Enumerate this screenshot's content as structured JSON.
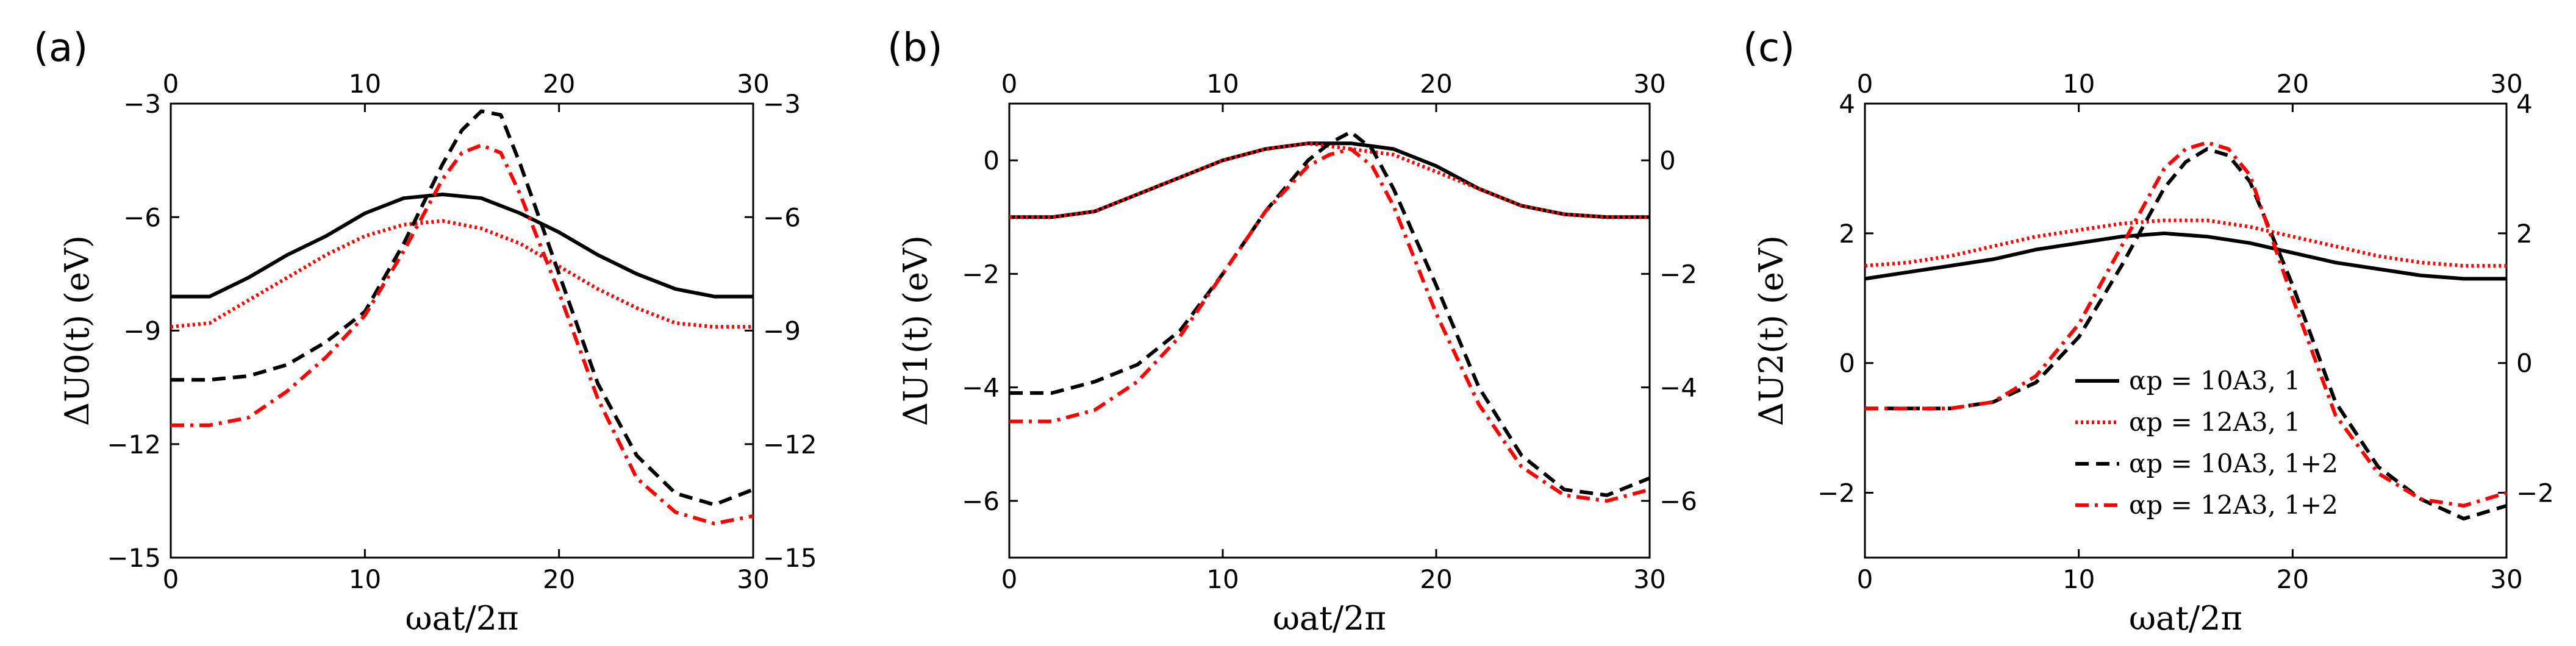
{
  "chart_data": [
    {
      "type": "line",
      "panel_label": "(a)",
      "xlabel": "ωat/2π",
      "ylabel": "ΔU0(t) (eV)",
      "xlim": [
        0,
        30
      ],
      "ylim": [
        -15,
        -3
      ],
      "xticks": [
        0,
        10,
        20,
        30
      ],
      "yticks": [
        -15,
        -12,
        -9,
        -6,
        -3
      ],
      "xtick_labels": [
        "0",
        "10",
        "20",
        "30"
      ],
      "ytick_labels": [
        "−15",
        "−12",
        "−9",
        "−6",
        "−3"
      ],
      "grid": false,
      "series": [
        {
          "color": "#000000",
          "dash": "solid",
          "x": [
            0,
            2,
            4,
            6,
            8,
            10,
            12,
            14,
            16,
            18,
            20,
            22,
            24,
            26,
            28,
            30
          ],
          "y": [
            -8.1,
            -8.1,
            -7.6,
            -7.0,
            -6.5,
            -5.9,
            -5.5,
            -5.4,
            -5.5,
            -5.9,
            -6.4,
            -7.0,
            -7.5,
            -7.9,
            -8.1,
            -8.1
          ]
        },
        {
          "color": "#ff0000",
          "dash": "dotted",
          "x": [
            0,
            2,
            4,
            6,
            8,
            10,
            12,
            14,
            16,
            18,
            20,
            22,
            24,
            26,
            28,
            30
          ],
          "y": [
            -8.9,
            -8.8,
            -8.2,
            -7.6,
            -7.0,
            -6.5,
            -6.2,
            -6.1,
            -6.3,
            -6.7,
            -7.3,
            -7.9,
            -8.4,
            -8.8,
            -8.9,
            -8.9
          ]
        },
        {
          "color": "#000000",
          "dash": "dashed",
          "x": [
            0,
            2,
            4,
            6,
            8,
            10,
            12,
            14,
            15,
            16,
            17,
            18,
            20,
            22,
            24,
            26,
            28,
            30
          ],
          "y": [
            -10.3,
            -10.3,
            -10.2,
            -9.9,
            -9.3,
            -8.5,
            -6.7,
            -4.6,
            -3.7,
            -3.2,
            -3.3,
            -4.6,
            -7.5,
            -10.4,
            -12.3,
            -13.3,
            -13.6,
            -13.2
          ]
        },
        {
          "color": "#ff0000",
          "dash": "dashdot",
          "x": [
            0,
            2,
            4,
            6,
            8,
            10,
            12,
            14,
            15,
            16,
            17,
            18,
            20,
            22,
            24,
            26,
            28,
            30
          ],
          "y": [
            -11.5,
            -11.5,
            -11.3,
            -10.6,
            -9.7,
            -8.6,
            -6.9,
            -5.0,
            -4.3,
            -4.1,
            -4.3,
            -5.4,
            -8.0,
            -10.8,
            -12.9,
            -13.8,
            -14.1,
            -13.9
          ]
        }
      ]
    },
    {
      "type": "line",
      "panel_label": "(b)",
      "xlabel": "ωat/2π",
      "ylabel": "ΔU1(t) (eV)",
      "xlim": [
        0,
        30
      ],
      "ylim": [
        -7,
        1
      ],
      "xticks": [
        0,
        10,
        20,
        30
      ],
      "yticks": [
        -6,
        -4,
        -2,
        0
      ],
      "xtick_labels": [
        "0",
        "10",
        "20",
        "30"
      ],
      "ytick_labels": [
        "−6",
        "−4",
        "−2",
        "0"
      ],
      "grid": false,
      "series": [
        {
          "color": "#000000",
          "dash": "solid",
          "x": [
            0,
            2,
            4,
            6,
            8,
            10,
            12,
            14,
            16,
            18,
            20,
            22,
            24,
            26,
            28,
            30
          ],
          "y": [
            -1.0,
            -1.0,
            -0.9,
            -0.6,
            -0.3,
            0.0,
            0.2,
            0.3,
            0.3,
            0.2,
            -0.1,
            -0.5,
            -0.8,
            -0.95,
            -1.0,
            -1.0
          ]
        },
        {
          "color": "#ff0000",
          "dash": "dotted",
          "x": [
            0,
            2,
            4,
            6,
            8,
            10,
            12,
            14,
            16,
            18,
            20,
            22,
            24,
            26,
            28,
            30
          ],
          "y": [
            -1.0,
            -1.0,
            -0.9,
            -0.6,
            -0.3,
            0.0,
            0.2,
            0.3,
            0.2,
            0.1,
            -0.2,
            -0.5,
            -0.8,
            -0.95,
            -1.0,
            -1.0
          ]
        },
        {
          "color": "#000000",
          "dash": "dashed",
          "x": [
            0,
            2,
            4,
            6,
            8,
            10,
            12,
            14,
            15,
            16,
            17,
            18,
            20,
            22,
            24,
            26,
            28,
            30
          ],
          "y": [
            -4.1,
            -4.1,
            -3.9,
            -3.6,
            -3.0,
            -2.0,
            -0.9,
            0.0,
            0.3,
            0.5,
            0.2,
            -0.5,
            -2.2,
            -4.0,
            -5.2,
            -5.8,
            -5.9,
            -5.6
          ]
        },
        {
          "color": "#ff0000",
          "dash": "dashdot",
          "x": [
            0,
            2,
            4,
            6,
            8,
            10,
            12,
            14,
            15,
            16,
            17,
            18,
            20,
            22,
            24,
            26,
            28,
            30
          ],
          "y": [
            -4.6,
            -4.6,
            -4.4,
            -3.9,
            -3.1,
            -2.0,
            -0.9,
            -0.1,
            0.1,
            0.2,
            -0.1,
            -0.8,
            -2.7,
            -4.3,
            -5.4,
            -5.9,
            -6.0,
            -5.8
          ]
        }
      ]
    },
    {
      "type": "line",
      "panel_label": "(c)",
      "xlabel": "ωat/2π",
      "ylabel": "ΔU2(t) (eV)",
      "xlim": [
        0,
        30
      ],
      "ylim": [
        -3,
        4
      ],
      "xticks": [
        0,
        10,
        20,
        30
      ],
      "yticks": [
        -2,
        0,
        2,
        4
      ],
      "xtick_labels": [
        "0",
        "10",
        "20",
        "30"
      ],
      "ytick_labels": [
        "−2",
        "0",
        "2",
        "4"
      ],
      "grid": false,
      "legend_position": "lower-center",
      "series": [
        {
          "name": "αp = 10A3, 1",
          "color": "#000000",
          "dash": "solid",
          "x": [
            0,
            2,
            4,
            6,
            8,
            10,
            12,
            14,
            16,
            18,
            20,
            22,
            24,
            26,
            28,
            30
          ],
          "y": [
            1.3,
            1.4,
            1.5,
            1.6,
            1.75,
            1.85,
            1.95,
            2.0,
            1.95,
            1.85,
            1.7,
            1.55,
            1.45,
            1.35,
            1.3,
            1.3
          ]
        },
        {
          "name": "αp = 12A3, 1",
          "color": "#ff0000",
          "dash": "dotted",
          "x": [
            0,
            2,
            4,
            6,
            8,
            10,
            12,
            14,
            16,
            18,
            20,
            22,
            24,
            26,
            28,
            30
          ],
          "y": [
            1.5,
            1.55,
            1.65,
            1.8,
            1.95,
            2.05,
            2.15,
            2.2,
            2.2,
            2.1,
            1.95,
            1.8,
            1.65,
            1.55,
            1.5,
            1.5
          ]
        },
        {
          "name": "αp = 10A3, 1+2",
          "color": "#000000",
          "dash": "dashed",
          "x": [
            0,
            2,
            4,
            6,
            8,
            10,
            12,
            14,
            15,
            16,
            17,
            18,
            20,
            22,
            24,
            26,
            28,
            30
          ],
          "y": [
            -0.7,
            -0.7,
            -0.7,
            -0.6,
            -0.3,
            0.4,
            1.5,
            2.7,
            3.1,
            3.3,
            3.2,
            2.8,
            1.2,
            -0.6,
            -1.6,
            -2.1,
            -2.4,
            -2.2
          ]
        },
        {
          "name": "αp = 12A3, 1+2",
          "color": "#ff0000",
          "dash": "dashdot",
          "x": [
            0,
            2,
            4,
            6,
            8,
            10,
            12,
            14,
            15,
            16,
            17,
            18,
            20,
            22,
            24,
            26,
            28,
            30
          ],
          "y": [
            -0.7,
            -0.7,
            -0.7,
            -0.6,
            -0.2,
            0.6,
            1.8,
            3.0,
            3.3,
            3.4,
            3.3,
            2.9,
            1.0,
            -0.8,
            -1.7,
            -2.1,
            -2.2,
            -2.0
          ]
        }
      ]
    }
  ]
}
